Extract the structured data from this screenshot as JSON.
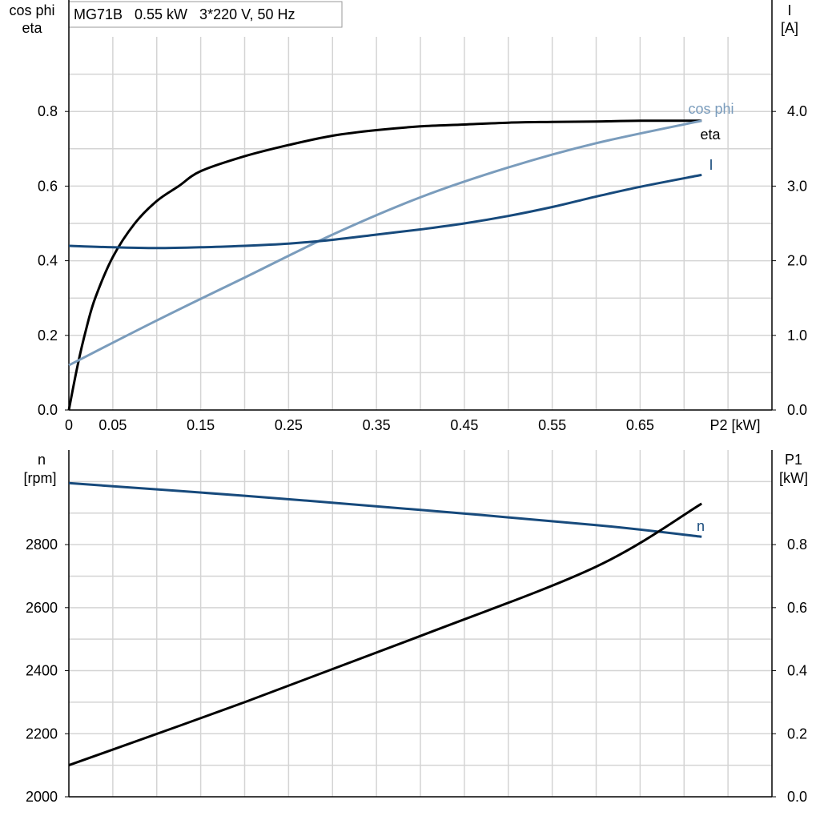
{
  "chart_data": [
    {
      "type": "line",
      "title": "MG71B   0.55 kW   3*220 V, 50 Hz",
      "xlabel": "P2 [kW]",
      "ylabel_left": [
        "cos phi",
        "eta"
      ],
      "ylabel_right": [
        "I",
        "[A]"
      ],
      "xlim": [
        0,
        0.8
      ],
      "ylim_left": [
        0,
        1.0
      ],
      "ylim_right": [
        0,
        5.0
      ],
      "x_tick_values": [
        0,
        0.05,
        0.15,
        0.25,
        0.35,
        0.45,
        0.55,
        0.65
      ],
      "x_tick_labels": [
        "0",
        "0.05",
        "0.15",
        "0.25",
        "0.35",
        "0.45",
        "0.55",
        "0.65"
      ],
      "y_left_tick_values": [
        0,
        0.2,
        0.4,
        0.6,
        0.8
      ],
      "y_left_tick_labels": [
        "0.0",
        "0.2",
        "0.4",
        "0.6",
        "0.8"
      ],
      "y_right_tick_values": [
        0,
        1,
        2,
        3,
        4
      ],
      "y_right_tick_labels": [
        "0.0",
        "1.0",
        "2.0",
        "3.0",
        "4.0"
      ],
      "grid": true,
      "series": [
        {
          "name": "eta",
          "axis": "left",
          "color": "#000000",
          "x": [
            0,
            0.01,
            0.02,
            0.03,
            0.05,
            0.075,
            0.1,
            0.125,
            0.15,
            0.2,
            0.25,
            0.3,
            0.35,
            0.4,
            0.45,
            0.5,
            0.55,
            0.6,
            0.65,
            0.72
          ],
          "y": [
            0,
            0.12,
            0.22,
            0.3,
            0.41,
            0.5,
            0.56,
            0.6,
            0.64,
            0.68,
            0.71,
            0.735,
            0.75,
            0.76,
            0.765,
            0.77,
            0.772,
            0.773,
            0.775,
            0.775
          ]
        },
        {
          "name": "cos phi",
          "axis": "left",
          "color": "#7a9cbc",
          "x": [
            0,
            0.1,
            0.2,
            0.3,
            0.4,
            0.5,
            0.6,
            0.72
          ],
          "y": [
            0.12,
            0.24,
            0.355,
            0.47,
            0.57,
            0.65,
            0.715,
            0.775
          ]
        },
        {
          "name": "I",
          "axis": "right",
          "color": "#174a7c",
          "x": [
            0,
            0.05,
            0.1,
            0.15,
            0.2,
            0.25,
            0.3,
            0.35,
            0.4,
            0.45,
            0.5,
            0.55,
            0.6,
            0.65,
            0.72
          ],
          "y": [
            2.2,
            2.18,
            2.17,
            2.18,
            2.2,
            2.23,
            2.28,
            2.35,
            2.42,
            2.5,
            2.6,
            2.72,
            2.86,
            2.99,
            3.15
          ]
        }
      ]
    },
    {
      "type": "line",
      "xlabel": "",
      "ylabel_left": [
        "n",
        "[rpm]"
      ],
      "ylabel_right": [
        "P1",
        "[kW]"
      ],
      "xlim": [
        0,
        0.8
      ],
      "ylim_left": [
        2000,
        3100
      ],
      "ylim_right": [
        0,
        1.1
      ],
      "y_left_tick_values": [
        2000,
        2200,
        2400,
        2600,
        2800
      ],
      "y_left_tick_labels": [
        "2000",
        "2200",
        "2400",
        "2600",
        "2800"
      ],
      "y_right_tick_values": [
        0,
        0.2,
        0.4,
        0.6,
        0.8
      ],
      "y_right_tick_labels": [
        "0.0",
        "0.2",
        "0.4",
        "0.6",
        "0.8"
      ],
      "grid": true,
      "series": [
        {
          "name": "n",
          "axis": "left",
          "color": "#174a7c",
          "x": [
            0,
            0.2,
            0.4,
            0.6,
            0.72
          ],
          "y": [
            2995,
            2955,
            2910,
            2862,
            2825
          ]
        },
        {
          "name": "",
          "axis": "right",
          "color": "#000000",
          "x": [
            0,
            0.2,
            0.4,
            0.6,
            0.72
          ],
          "y": [
            0.1,
            0.3,
            0.51,
            0.73,
            0.93
          ]
        }
      ]
    }
  ]
}
